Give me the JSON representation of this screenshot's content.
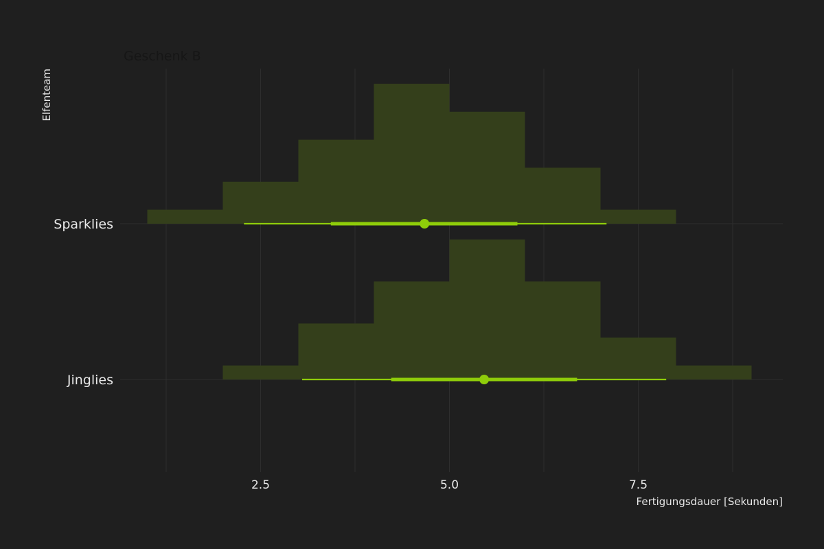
{
  "chart_data": {
    "type": "histogram-interval",
    "title": "Geschenk B",
    "xlabel": "Fertigungsdauer [Sekunden]",
    "ylabel": "Elfenteam",
    "xlim": [
      0.35,
      9.8
    ],
    "x_ticks": [
      2.5,
      5.0,
      7.5
    ],
    "x_tick_labels": [
      "2.5",
      "5.0",
      "7.5"
    ],
    "x_minor_ticks": [
      1.25,
      3.75,
      6.25,
      8.75
    ],
    "grid": true,
    "categories": [
      "Sparklies",
      "Jinglies"
    ],
    "series": [
      {
        "category": "Sparklies",
        "bins": [
          {
            "x0": 1,
            "x1": 2,
            "height": 0.1
          },
          {
            "x0": 2,
            "x1": 3,
            "height": 0.3
          },
          {
            "x0": 3,
            "x1": 4,
            "height": 0.6
          },
          {
            "x0": 4,
            "x1": 5,
            "height": 1.0
          },
          {
            "x0": 5,
            "x1": 6,
            "height": 0.8
          },
          {
            "x0": 6,
            "x1": 7,
            "height": 0.4
          },
          {
            "x0": 7,
            "x1": 8,
            "height": 0.1
          }
        ],
        "point": 4.67,
        "interval_inner": [
          3.43,
          5.9
        ],
        "interval_outer": [
          2.28,
          7.08
        ]
      },
      {
        "category": "Jinglies",
        "bins": [
          {
            "x0": 2,
            "x1": 3,
            "height": 0.1
          },
          {
            "x0": 3,
            "x1": 4,
            "height": 0.4
          },
          {
            "x0": 4,
            "x1": 5,
            "height": 0.7
          },
          {
            "x0": 5,
            "x1": 6,
            "height": 1.0
          },
          {
            "x0": 6,
            "x1": 7,
            "height": 0.7
          },
          {
            "x0": 7,
            "x1": 8,
            "height": 0.3
          },
          {
            "x0": 8,
            "x1": 9,
            "height": 0.1
          }
        ],
        "point": 5.46,
        "interval_inner": [
          4.23,
          6.69
        ],
        "interval_outer": [
          3.05,
          7.87
        ]
      }
    ],
    "colors": {
      "background": "#1f1f1f",
      "grid": "#2e2e2e",
      "hist_fill": "#343f1b",
      "interval": "#8fcd0a",
      "text": "#e8e8e8",
      "title": "#161616"
    }
  }
}
